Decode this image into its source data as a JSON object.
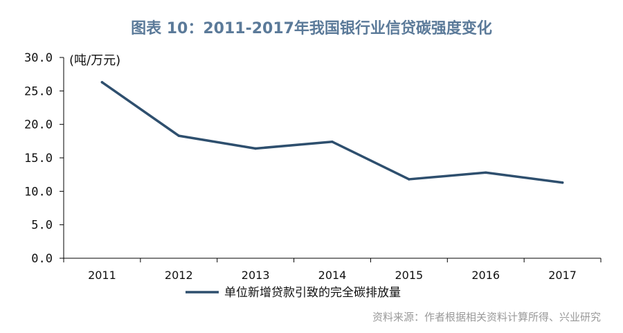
{
  "title": "图表 10：2011-2017年我国银行业信贷碳强度变化",
  "unit_label": "(吨/万元)",
  "source": "资料来源：作者根据相关资料计算所得、兴业研究",
  "colors": {
    "series": "#2e4f6e",
    "title": "#5b7a99",
    "axis": "#000000"
  },
  "chart_data": {
    "type": "line",
    "title": "图表 10：2011-2017年我国银行业信贷碳强度变化",
    "xlabel": "",
    "ylabel": "(吨/万元)",
    "categories": [
      "2011",
      "2012",
      "2013",
      "2014",
      "2015",
      "2016",
      "2017"
    ],
    "ylim": [
      0,
      30
    ],
    "yticks": [
      "0.0",
      "5.0",
      "10.0",
      "15.0",
      "20.0",
      "25.0",
      "30.0"
    ],
    "grid": false,
    "legend_position": "bottom-left",
    "series": [
      {
        "name": "单位新增贷款引致的完全碳排放量",
        "values": [
          26.3,
          18.3,
          16.4,
          17.4,
          11.8,
          12.8,
          11.3
        ]
      }
    ]
  }
}
